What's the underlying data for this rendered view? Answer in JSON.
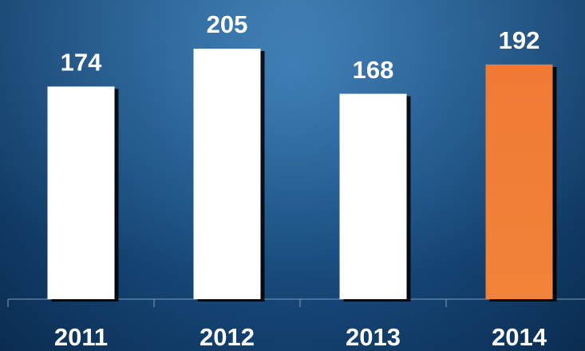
{
  "chart_data": {
    "type": "bar",
    "categories": [
      "2011",
      "2012",
      "2013",
      "2014"
    ],
    "values": [
      174,
      205,
      168,
      192
    ],
    "colors": [
      "#ffffff",
      "#ffffff",
      "#ffffff",
      "#f07a35"
    ]
  }
}
